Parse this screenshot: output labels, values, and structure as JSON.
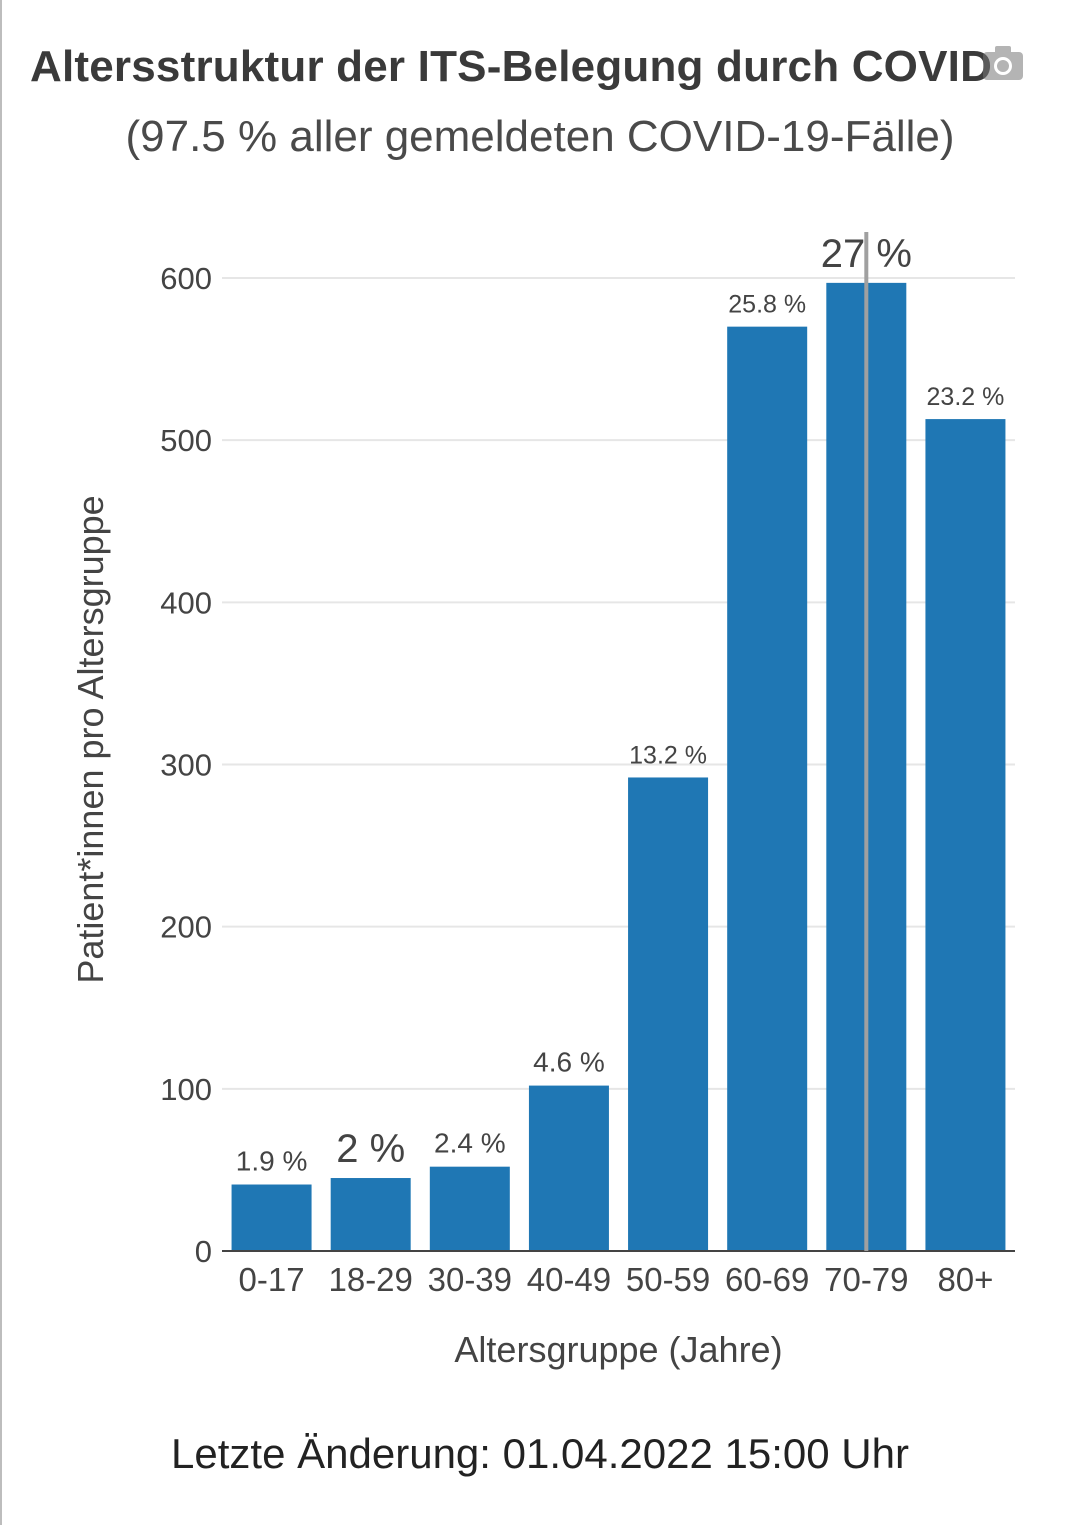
{
  "header": {
    "title": "Altersstruktur der ITS-Belegung durch COVID",
    "subtitle": "(97.5 % aller gemeldeten COVID-19-Fälle)"
  },
  "footer": {
    "last_change": "Letzte Änderung: 01.04.2022 15:00 Uhr"
  },
  "icons": {
    "camera": "camera-icon"
  },
  "colors": {
    "bar": "#1f77b4",
    "grid": "#e6e6e6",
    "hover_line": "#a0a0a0"
  },
  "chart_data": {
    "type": "bar",
    "title": "Altersstruktur der ITS-Belegung durch COVID",
    "subtitle": "(97.5 % aller gemeldeten COVID-19-Fälle)",
    "xlabel": "Altersgruppe (Jahre)",
    "ylabel": "Patient*innen pro Altersgruppe",
    "categories": [
      "0-17",
      "18-29",
      "30-39",
      "40-49",
      "50-59",
      "60-69",
      "70-79",
      "80+"
    ],
    "values": [
      41,
      45,
      52,
      102,
      292,
      570,
      597,
      513
    ],
    "data_labels": [
      "1.9 %",
      "2 %",
      "2.4 %",
      "4.6 %",
      "13.2 %",
      "25.8 %",
      "27 %",
      "23.2 %"
    ],
    "yticks": [
      0,
      100,
      200,
      300,
      400,
      500,
      600
    ],
    "ylim": [
      0,
      600
    ],
    "grid": true,
    "highlighted_category": "70-79"
  }
}
